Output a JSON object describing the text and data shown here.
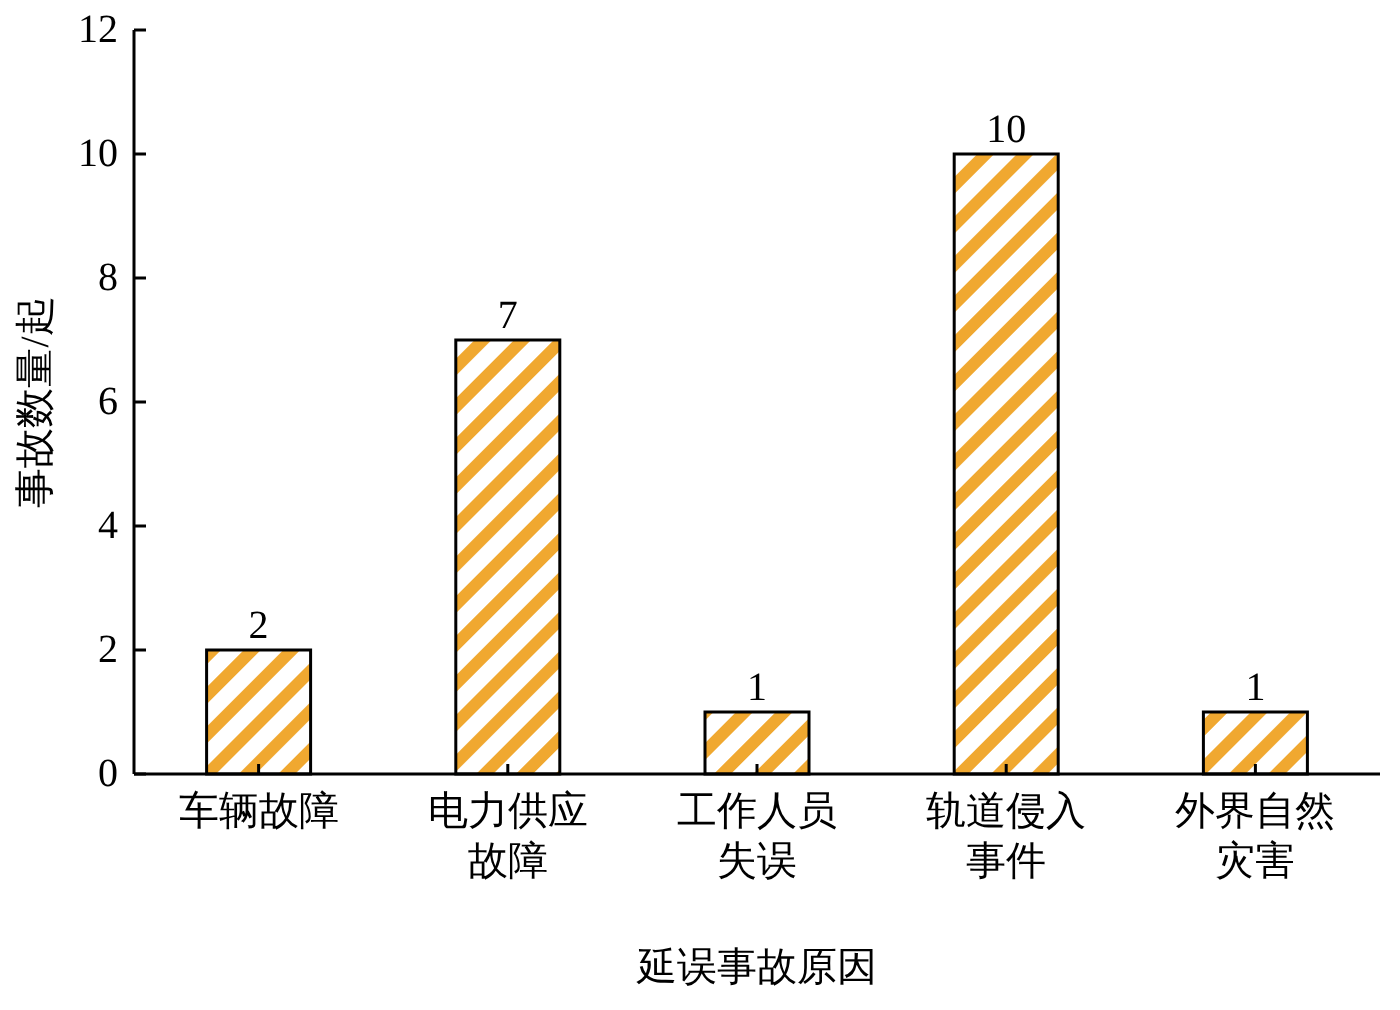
{
  "chart_data": {
    "type": "bar",
    "xlabel": "延误事故原因",
    "ylabel": "事故数量/起",
    "categories": [
      "车辆故障",
      "电力供应故障",
      "工作人员失误",
      "轨道侵入事件",
      "外界自然灾害"
    ],
    "values": [
      2,
      7,
      1,
      10,
      1
    ],
    "color": "#f0a830",
    "ylim": [
      0,
      12
    ],
    "yticks": [
      0,
      2,
      4,
      6,
      8,
      10,
      12
    ],
    "data_labels": true
  }
}
